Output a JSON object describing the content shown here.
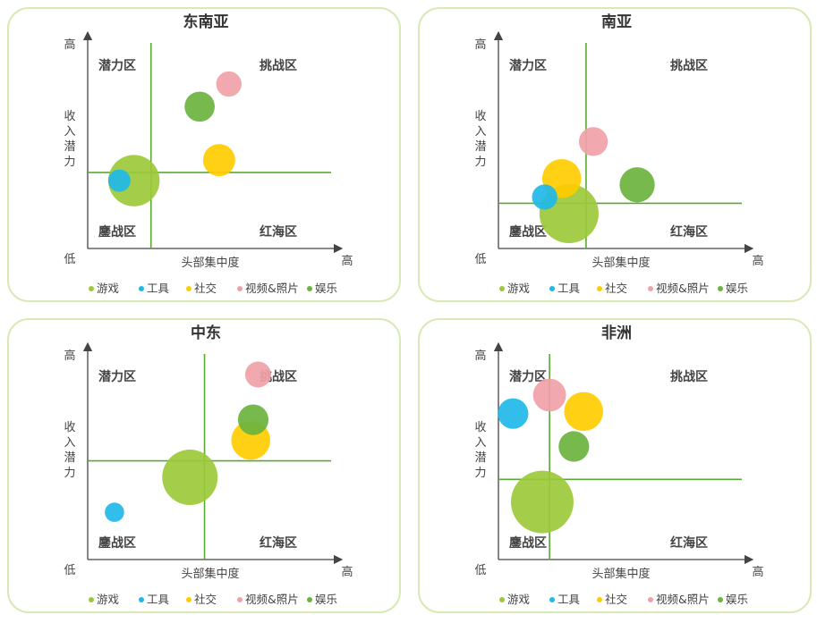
{
  "legend": {
    "items": [
      {
        "label": "游戏",
        "color": "#9cc93a"
      },
      {
        "label": "工具",
        "color": "#1fb9e8"
      },
      {
        "label": "社交",
        "color": "#ffcc00"
      },
      {
        "label": "视频&照片",
        "color": "#f0a1a8"
      },
      {
        "label": "娱乐",
        "color": "#6db33f"
      }
    ]
  },
  "axis_labels": {
    "y_high": "高",
    "y_low": "低",
    "y_label": "收入潜力",
    "x_label": "头部集中度",
    "x_high": "高"
  },
  "quadrants": {
    "top_left": "潜力区",
    "top_right": "挑战区",
    "bottom_left": "鏖战区",
    "bottom_right": "红海区"
  },
  "chart_data": [
    {
      "type": "scatter",
      "title": "东南亚",
      "xlabel": "头部集中度",
      "ylabel": "收入潜力",
      "xlim": [
        0,
        10
      ],
      "ylim": [
        0,
        10
      ],
      "divider": {
        "x": 2.6,
        "y": 3.7
      },
      "series": [
        {
          "name": "游戏",
          "x": 1.9,
          "y": 3.3,
          "size": 10
        },
        {
          "name": "工具",
          "x": 1.3,
          "y": 3.3,
          "size": 1
        },
        {
          "name": "社交",
          "x": 5.4,
          "y": 4.3,
          "size": 3
        },
        {
          "name": "视频&照片",
          "x": 5.8,
          "y": 8.0,
          "size": 1.5
        },
        {
          "name": "娱乐",
          "x": 4.6,
          "y": 6.9,
          "size": 2.5
        }
      ]
    },
    {
      "type": "scatter",
      "title": "南亚",
      "xlabel": "头部集中度",
      "ylabel": "收入潜力",
      "xlim": [
        0,
        10
      ],
      "ylim": [
        0,
        10
      ],
      "divider": {
        "x": 3.6,
        "y": 2.2
      },
      "series": [
        {
          "name": "游戏",
          "x": 2.9,
          "y": 1.7,
          "size": 14
        },
        {
          "name": "工具",
          "x": 1.9,
          "y": 2.5,
          "size": 1.5
        },
        {
          "name": "社交",
          "x": 2.6,
          "y": 3.4,
          "size": 5
        },
        {
          "name": "视频&照片",
          "x": 3.9,
          "y": 5.2,
          "size": 2.2
        },
        {
          "name": "娱乐",
          "x": 5.7,
          "y": 3.1,
          "size": 3.8
        }
      ]
    },
    {
      "type": "scatter",
      "title": "中东",
      "xlabel": "头部集中度",
      "ylabel": "收入潜力",
      "xlim": [
        0,
        10
      ],
      "ylim": [
        0,
        10
      ],
      "divider": {
        "x": 4.8,
        "y": 4.8
      },
      "series": [
        {
          "name": "游戏",
          "x": 4.2,
          "y": 4.0,
          "size": 12
        },
        {
          "name": "工具",
          "x": 1.1,
          "y": 2.3,
          "size": 0.6
        },
        {
          "name": "社交",
          "x": 6.7,
          "y": 5.8,
          "size": 5
        },
        {
          "name": "视频&照片",
          "x": 7.0,
          "y": 9.0,
          "size": 1.6
        },
        {
          "name": "娱乐",
          "x": 6.8,
          "y": 6.8,
          "size": 2.6
        }
      ]
    },
    {
      "type": "scatter",
      "title": "非洲",
      "xlabel": "头部集中度",
      "ylabel": "收入潜力",
      "xlim": [
        0,
        10
      ],
      "ylim": [
        0,
        10
      ],
      "divider": {
        "x": 2.1,
        "y": 3.9
      },
      "series": [
        {
          "name": "游戏",
          "x": 1.8,
          "y": 2.8,
          "size": 16
        },
        {
          "name": "工具",
          "x": 0.6,
          "y": 7.1,
          "size": 2.6
        },
        {
          "name": "社交",
          "x": 3.5,
          "y": 7.2,
          "size": 5
        },
        {
          "name": "视频&照片",
          "x": 2.1,
          "y": 8.0,
          "size": 3.2
        },
        {
          "name": "娱乐",
          "x": 3.1,
          "y": 5.5,
          "size": 2.6
        }
      ]
    }
  ]
}
